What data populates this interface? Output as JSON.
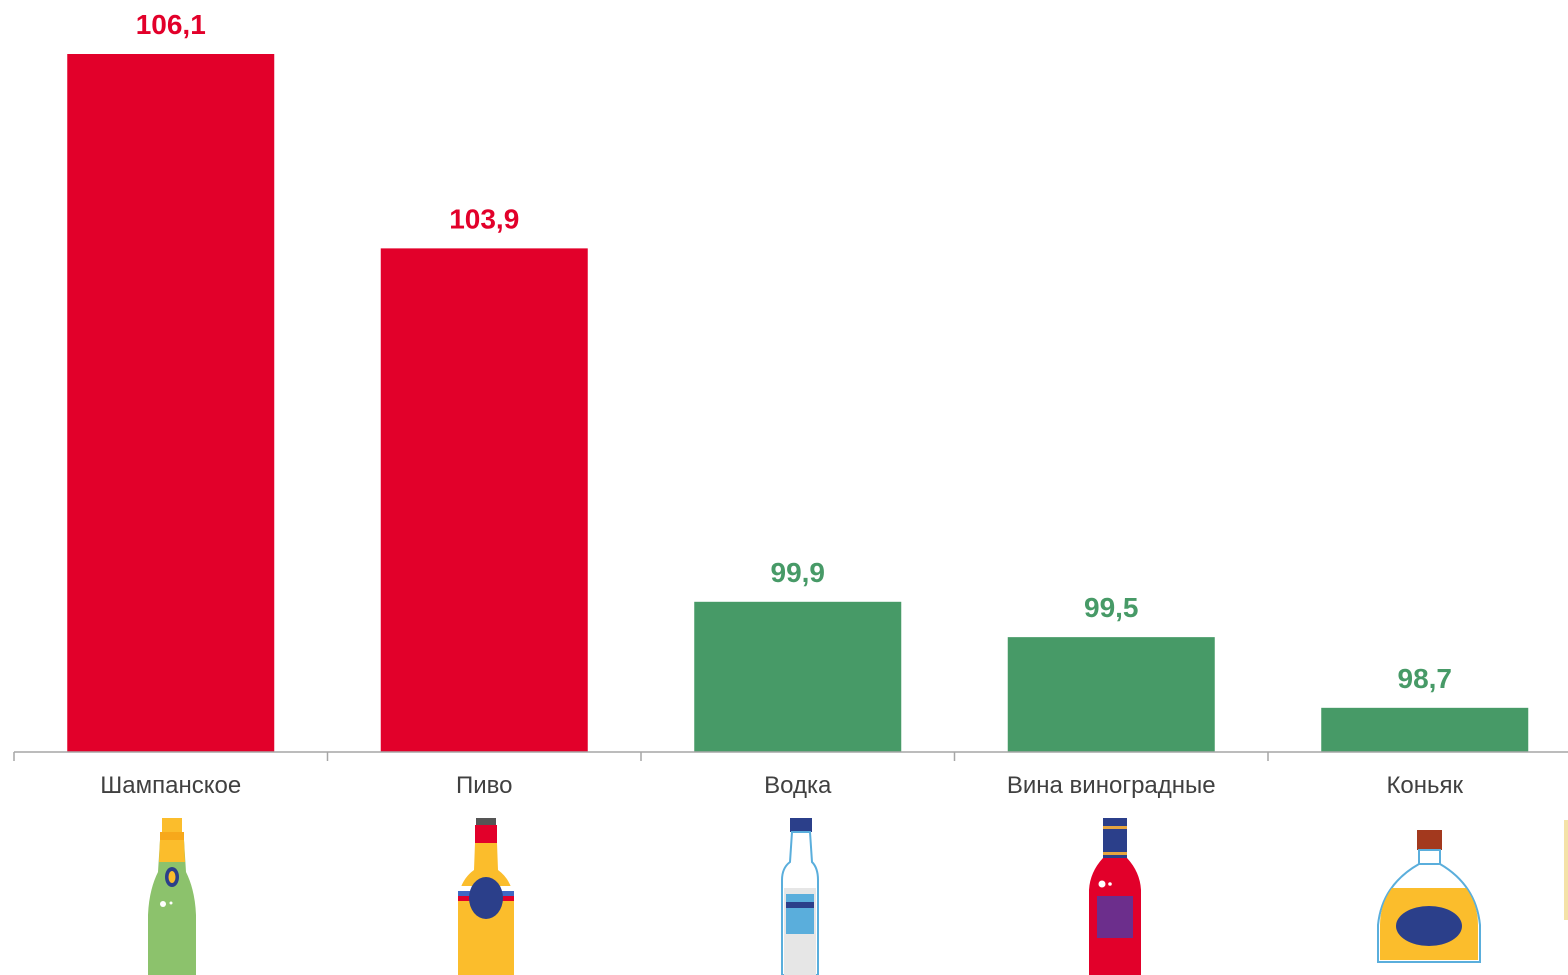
{
  "chart_data": {
    "type": "bar",
    "categories": [
      "Шампанское",
      "Пиво",
      "Водка",
      "Вина виноградные",
      "Коньяк"
    ],
    "values": [
      106.1,
      103.9,
      99.9,
      99.5,
      98.7
    ],
    "value_labels": [
      "106,1",
      "103,9",
      "99,9",
      "99,5",
      "98,7"
    ],
    "bar_colors": [
      "#e2002a",
      "#e2002a",
      "#479a67",
      "#479a67",
      "#479a67"
    ],
    "icons": [
      "champagne-bottle-icon",
      "beer-bottle-icon",
      "vodka-bottle-icon",
      "wine-bottle-icon",
      "cognac-bottle-icon"
    ],
    "title": "",
    "xlabel": "",
    "ylabel": "",
    "ylim": [
      98.2,
      106.1
    ],
    "grid": false,
    "legend": "none"
  }
}
